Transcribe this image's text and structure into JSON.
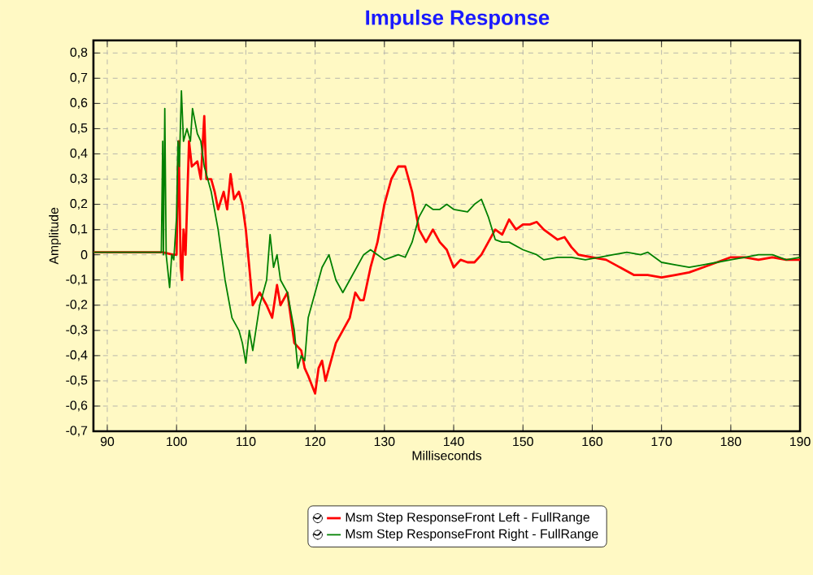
{
  "chart_data": {
    "type": "line",
    "title": "Impulse Response",
    "xlabel": "Milliseconds",
    "ylabel": "Amplitude",
    "xlim": [
      88,
      190
    ],
    "xticks": [
      90,
      100,
      110,
      120,
      130,
      140,
      150,
      160,
      170,
      180,
      190
    ],
    "ylim": [
      -0.7,
      0.85
    ],
    "yticks": [
      {
        "value": -0.7,
        "label": "-0,7"
      },
      {
        "value": -0.6,
        "label": "-0,6"
      },
      {
        "value": -0.5,
        "label": "-0,5"
      },
      {
        "value": -0.4,
        "label": "-0,4"
      },
      {
        "value": -0.3,
        "label": "-0,3"
      },
      {
        "value": -0.2,
        "label": "-0,2"
      },
      {
        "value": -0.1,
        "label": "-0,1"
      },
      0,
      {
        "value": 0.1,
        "label": "0,1"
      },
      {
        "value": 0.2,
        "label": "0,2"
      },
      {
        "value": 0.3,
        "label": "0,3"
      },
      {
        "value": 0.4,
        "label": "0,4"
      },
      {
        "value": 0.5,
        "label": "0,5"
      },
      {
        "value": 0.6,
        "label": "0,6"
      },
      {
        "value": 0.7,
        "label": "0,7"
      },
      {
        "value": 0.8,
        "label": "0,8"
      }
    ],
    "grid": true,
    "legend": "bottom",
    "marker": "none",
    "line_style": "solid",
    "series": [
      {
        "name": "Msm Step ResponseFront Left - FullRange",
        "color": "#ff0000",
        "x": [
          88,
          98,
          99.5,
          100,
          100.3,
          100.6,
          100.8,
          101,
          101.3,
          101.8,
          102.2,
          103,
          103.5,
          104,
          104.3,
          105,
          105.5,
          106,
          106.8,
          107.3,
          107.8,
          108.3,
          109,
          109.5,
          110,
          110.5,
          111,
          112,
          113,
          113.8,
          114.5,
          115,
          116,
          117,
          118,
          118.5,
          119,
          120,
          120.5,
          121,
          121.5,
          122,
          123,
          124,
          125,
          125.8,
          126.5,
          127,
          128,
          129,
          130,
          131,
          132,
          133,
          134,
          135,
          136,
          137,
          138,
          139,
          140,
          141,
          142,
          143,
          144,
          145,
          146,
          147,
          148,
          149,
          150,
          151,
          152,
          153,
          154,
          155,
          156,
          157,
          158,
          160,
          162,
          164,
          166,
          168,
          170,
          172,
          174,
          176,
          178,
          180,
          182,
          184,
          186,
          188,
          190
        ],
        "values": [
          0.01,
          0.01,
          0.0,
          0.0,
          0.45,
          -0.05,
          -0.1,
          0.1,
          0.0,
          0.45,
          0.35,
          0.37,
          0.3,
          0.55,
          0.3,
          0.3,
          0.25,
          0.18,
          0.25,
          0.18,
          0.32,
          0.22,
          0.25,
          0.2,
          0.1,
          -0.05,
          -0.2,
          -0.15,
          -0.2,
          -0.25,
          -0.12,
          -0.2,
          -0.15,
          -0.35,
          -0.38,
          -0.45,
          -0.48,
          -0.55,
          -0.45,
          -0.42,
          -0.5,
          -0.45,
          -0.35,
          -0.3,
          -0.25,
          -0.15,
          -0.18,
          -0.18,
          -0.05,
          0.05,
          0.2,
          0.3,
          0.35,
          0.35,
          0.25,
          0.1,
          0.05,
          0.1,
          0.05,
          0.02,
          -0.05,
          -0.02,
          -0.03,
          -0.03,
          0.0,
          0.05,
          0.1,
          0.08,
          0.14,
          0.1,
          0.12,
          0.12,
          0.13,
          0.1,
          0.08,
          0.06,
          0.07,
          0.03,
          0.0,
          -0.01,
          -0.02,
          -0.05,
          -0.08,
          -0.08,
          -0.09,
          -0.08,
          -0.07,
          -0.05,
          -0.03,
          -0.01,
          -0.01,
          -0.02,
          -0.01,
          -0.02,
          -0.02
        ]
      },
      {
        "name": "Msm Step ResponseFront Right - FullRange",
        "color": "#008000",
        "x": [
          88,
          97.8,
          98,
          98.1,
          98.3,
          98.5,
          99,
          99.3,
          99.6,
          100,
          100.2,
          100.4,
          100.7,
          101,
          101.5,
          102,
          102.3,
          103,
          103.5,
          104,
          105,
          106,
          107,
          108,
          109,
          109.5,
          110,
          110.5,
          111,
          112,
          113,
          113.5,
          114,
          114.5,
          115,
          116,
          117,
          117.5,
          118,
          118.5,
          119,
          120,
          121,
          122,
          123,
          124,
          125,
          126,
          127,
          128,
          130,
          132,
          133,
          134,
          135,
          136,
          137,
          138,
          139,
          140,
          142,
          143,
          144,
          145,
          146,
          147,
          148,
          150,
          152,
          153,
          155,
          157,
          159,
          161,
          163,
          165,
          167,
          168,
          170,
          172,
          174,
          176,
          178,
          180,
          182,
          184,
          186,
          188,
          190
        ],
        "values": [
          0.01,
          0.01,
          0.45,
          0.0,
          0.58,
          0.0,
          -0.13,
          0.0,
          -0.02,
          0.15,
          0.45,
          0.35,
          0.65,
          0.45,
          0.5,
          0.45,
          0.58,
          0.48,
          0.45,
          0.35,
          0.25,
          0.1,
          -0.1,
          -0.25,
          -0.3,
          -0.35,
          -0.43,
          -0.3,
          -0.38,
          -0.2,
          -0.1,
          0.08,
          -0.05,
          0.0,
          -0.1,
          -0.15,
          -0.3,
          -0.45,
          -0.4,
          -0.42,
          -0.25,
          -0.15,
          -0.05,
          0.0,
          -0.1,
          -0.15,
          -0.1,
          -0.05,
          0.0,
          0.02,
          -0.02,
          0.0,
          -0.01,
          0.05,
          0.15,
          0.2,
          0.18,
          0.18,
          0.2,
          0.18,
          0.17,
          0.2,
          0.22,
          0.15,
          0.06,
          0.05,
          0.05,
          0.02,
          0.0,
          -0.02,
          -0.01,
          -0.01,
          -0.02,
          -0.01,
          0.0,
          0.01,
          0.0,
          0.01,
          -0.03,
          -0.04,
          -0.05,
          -0.04,
          -0.03,
          -0.02,
          -0.01,
          0.0,
          0.0,
          -0.02,
          -0.01
        ]
      }
    ]
  }
}
